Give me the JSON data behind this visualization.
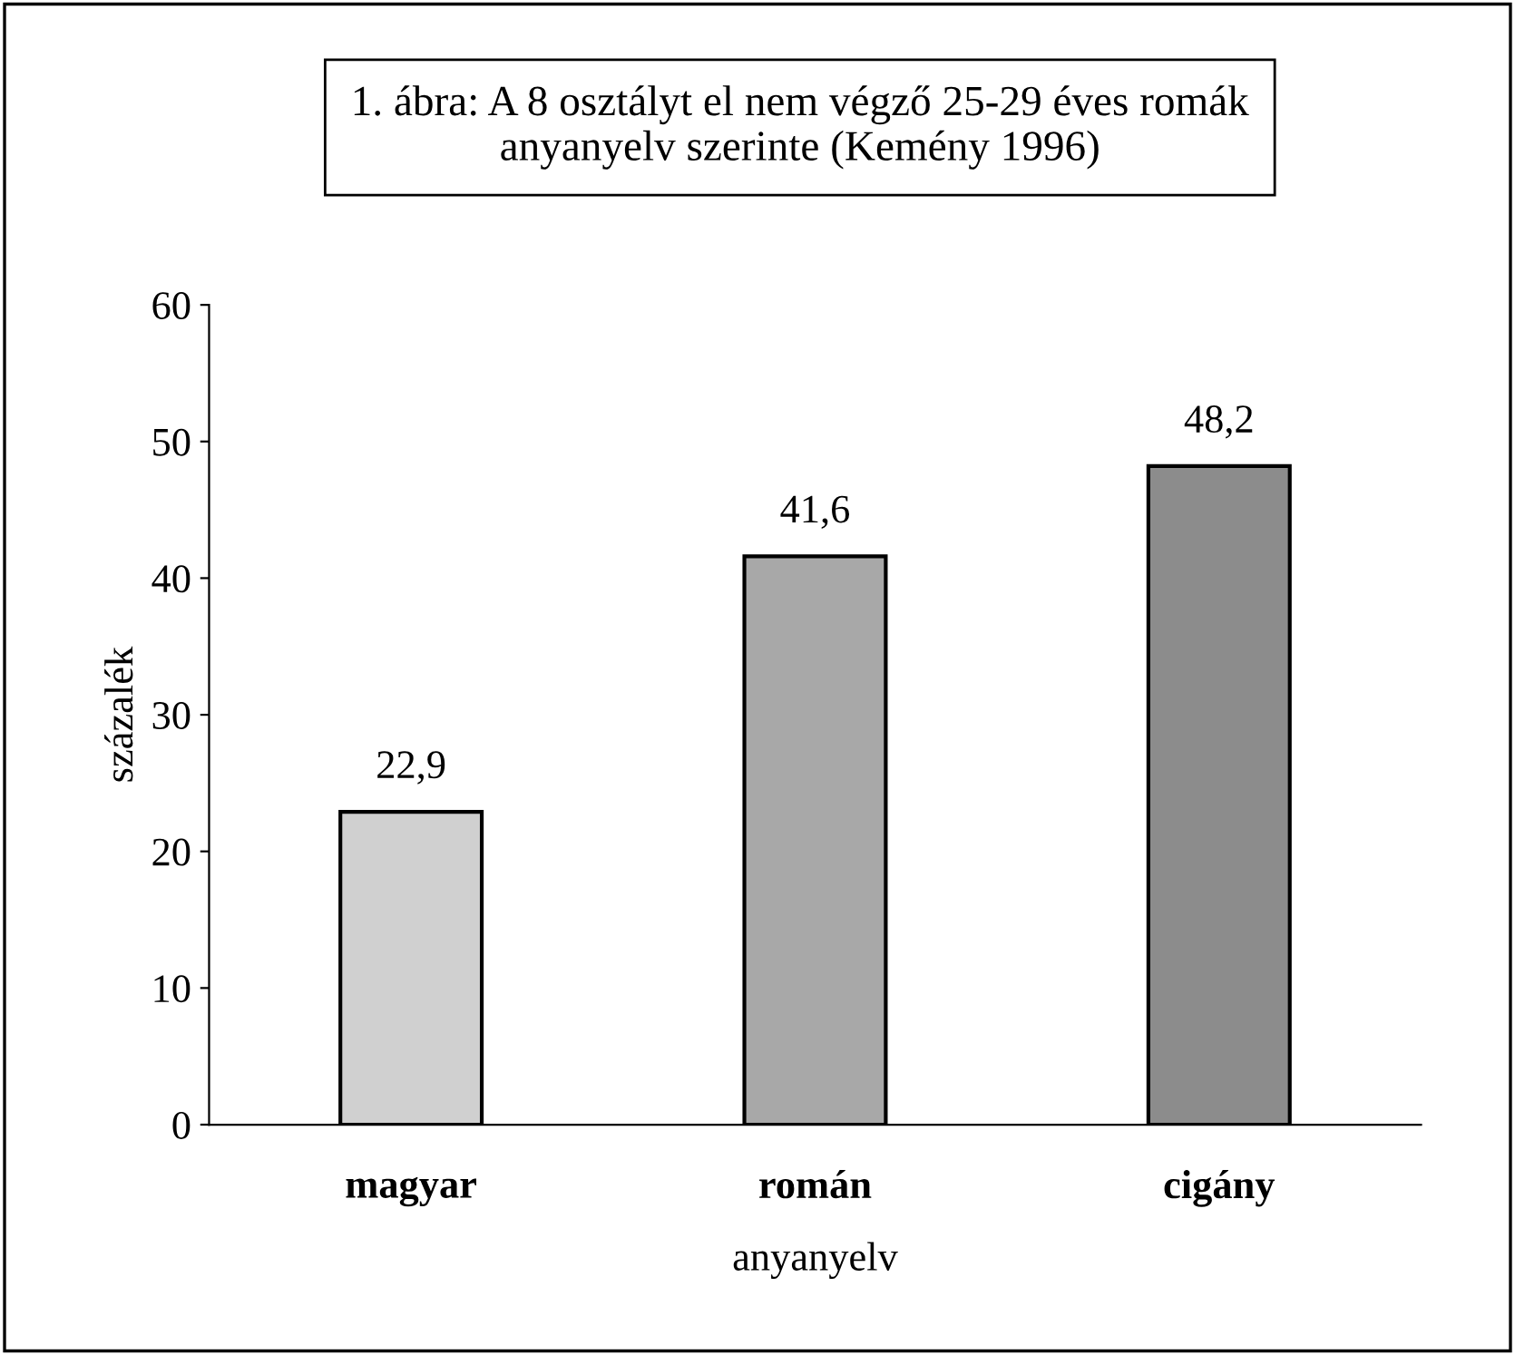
{
  "chart_data": {
    "type": "bar",
    "title": "1. ábra: A 8 osztályt el nem végző 25-29 éves romák\nanyanyelv szerinte (Kemény 1996)",
    "xlabel": "anyanyelv",
    "ylabel": "százalék",
    "categories": [
      "magyar",
      "román",
      "cigány"
    ],
    "values": [
      22.9,
      41.6,
      48.2
    ],
    "value_labels": [
      "22,9",
      "41,6",
      "48,2"
    ],
    "colors": [
      "#d0d0d0",
      "#a8a8a8",
      "#8c8c8c"
    ],
    "ylim": [
      0,
      60
    ],
    "yticks": [
      0,
      10,
      20,
      30,
      40,
      50,
      60
    ],
    "grid": false
  }
}
